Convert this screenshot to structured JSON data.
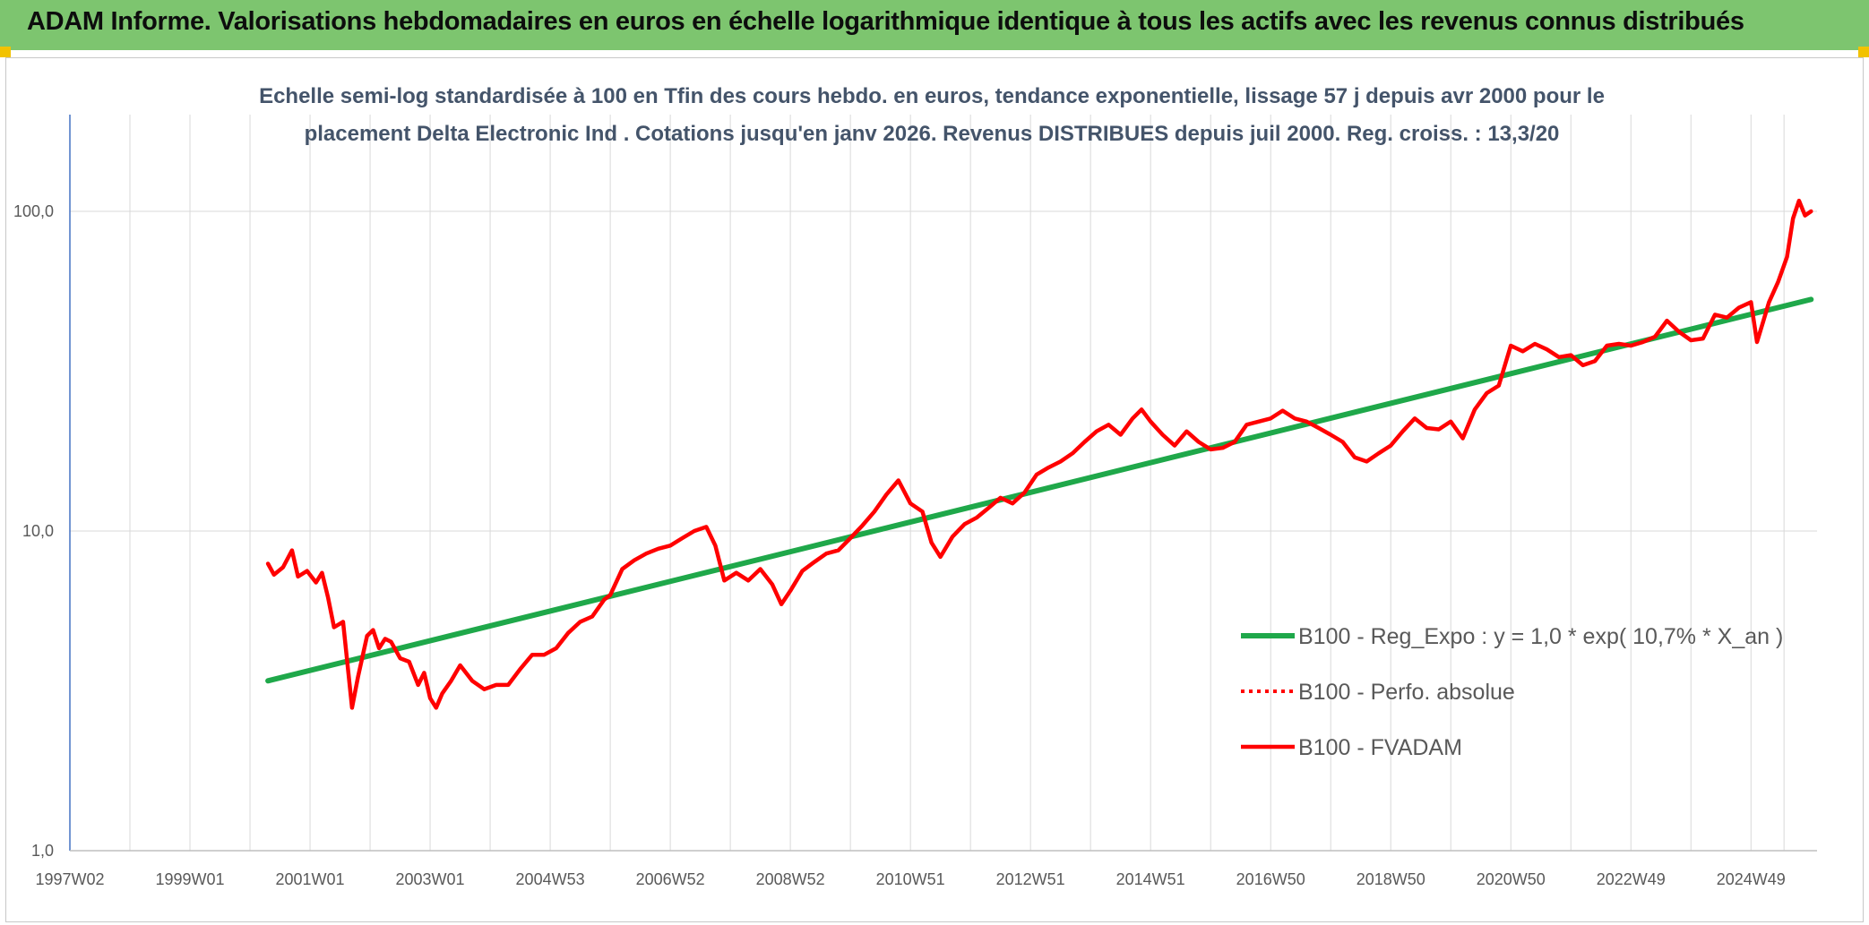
{
  "header": {
    "title": "ADAM Informe. Valorisations hebdomadaires en euros en échelle logarithmique identique à tous les actifs avec les revenus connus distribués"
  },
  "colors": {
    "header_bg": "#7dc56f",
    "corner": "#f2c200",
    "trend": "#1fa84a",
    "fvadam": "#ff0000",
    "title_text": "#44546a",
    "axis": "#4472c4",
    "grid": "#d9d9d9"
  },
  "chart_data": {
    "type": "line",
    "yscale": "log",
    "title_lines": [
      "Echelle semi-log standardisée à 100 en Tfin des cours hebdo. en euros, tendance exponentielle, lissage 57 j depuis avr 2000 pour le",
      "placement Delta Electronic Ind . Cotations jusqu'en janv 2026. Revenus DISTRIBUES depuis juil 2000. Reg. croiss. : 13,3/20"
    ],
    "xlim": [
      1997.0,
      2026.1
    ],
    "ylim": [
      1,
      200
    ],
    "x_ticks": [
      {
        "x": 1997.0,
        "label": "1997W02"
      },
      {
        "x": 1999.0,
        "label": "1999W01"
      },
      {
        "x": 2001.0,
        "label": "2001W01"
      },
      {
        "x": 2003.0,
        "label": "2003W01"
      },
      {
        "x": 2005.0,
        "label": "2004W53"
      },
      {
        "x": 2007.0,
        "label": "2006W52"
      },
      {
        "x": 2009.0,
        "label": "2008W52"
      },
      {
        "x": 2011.0,
        "label": "2010W51"
      },
      {
        "x": 2013.0,
        "label": "2012W51"
      },
      {
        "x": 2015.0,
        "label": "2014W51"
      },
      {
        "x": 2017.0,
        "label": "2016W50"
      },
      {
        "x": 2019.0,
        "label": "2018W50"
      },
      {
        "x": 2021.0,
        "label": "2020W50"
      },
      {
        "x": 2023.0,
        "label": "2022W49"
      },
      {
        "x": 2025.0,
        "label": "2024W49"
      }
    ],
    "y_ticks": [
      {
        "y": 1,
        "label": "1,0"
      },
      {
        "y": 10,
        "label": "10,0"
      },
      {
        "y": 100,
        "label": "100,0"
      }
    ],
    "legend": [
      {
        "key": "trend",
        "label": "B100 - Reg_Expo : y = 1,0 * exp( 10,7% *  X_an )",
        "style": "solid"
      },
      {
        "key": "perfo",
        "label": "B100 - Perfo. absolue",
        "style": "dotted"
      },
      {
        "key": "fvadam",
        "label": "B100 - FVADAM",
        "style": "solid"
      }
    ],
    "series": [
      {
        "name": "B100 - Reg_Expo",
        "key": "trend",
        "x": [
          2000.3,
          2026.0
        ],
        "y": [
          3.4,
          53
        ]
      },
      {
        "name": "B100 - Perfo. absolue",
        "key": "perfo",
        "x": [],
        "y": []
      },
      {
        "name": "B100 - FVADAM",
        "key": "fvadam",
        "x": [
          2000.3,
          2000.4,
          2000.55,
          2000.7,
          2000.8,
          2000.95,
          2001.1,
          2001.2,
          2001.3,
          2001.4,
          2001.55,
          2001.7,
          2001.8,
          2001.95,
          2002.05,
          2002.15,
          2002.25,
          2002.35,
          2002.5,
          2002.65,
          2002.8,
          2002.9,
          2003.0,
          2003.1,
          2003.2,
          2003.35,
          2003.5,
          2003.7,
          2003.9,
          2004.1,
          2004.3,
          2004.5,
          2004.7,
          2004.9,
          2005.1,
          2005.3,
          2005.5,
          2005.7,
          2005.9,
          2006.0,
          2006.2,
          2006.4,
          2006.6,
          2006.8,
          2007.0,
          2007.2,
          2007.4,
          2007.6,
          2007.75,
          2007.9,
          2008.1,
          2008.3,
          2008.5,
          2008.7,
          2008.85,
          2009.0,
          2009.2,
          2009.4,
          2009.6,
          2009.8,
          2010.0,
          2010.2,
          2010.4,
          2010.6,
          2010.8,
          2011.0,
          2011.2,
          2011.35,
          2011.5,
          2011.7,
          2011.9,
          2012.1,
          2012.3,
          2012.5,
          2012.7,
          2012.9,
          2013.1,
          2013.3,
          2013.5,
          2013.7,
          2013.9,
          2014.1,
          2014.3,
          2014.5,
          2014.7,
          2014.85,
          2015.0,
          2015.2,
          2015.4,
          2015.6,
          2015.8,
          2016.0,
          2016.2,
          2016.4,
          2016.6,
          2016.8,
          2017.0,
          2017.2,
          2017.4,
          2017.6,
          2017.8,
          2018.0,
          2018.2,
          2018.4,
          2018.6,
          2018.8,
          2019.0,
          2019.2,
          2019.4,
          2019.6,
          2019.8,
          2020.0,
          2020.2,
          2020.4,
          2020.6,
          2020.8,
          2021.0,
          2021.2,
          2021.4,
          2021.6,
          2021.8,
          2022.0,
          2022.2,
          2022.4,
          2022.6,
          2022.8,
          2023.0,
          2023.2,
          2023.4,
          2023.6,
          2023.8,
          2024.0,
          2024.2,
          2024.4,
          2024.6,
          2024.8,
          2025.0,
          2025.1,
          2025.2,
          2025.3,
          2025.45,
          2025.6,
          2025.7,
          2025.8,
          2025.9,
          2026.0
        ],
        "y": [
          7.9,
          7.3,
          7.7,
          8.7,
          7.2,
          7.5,
          6.9,
          7.4,
          6.2,
          5.0,
          5.2,
          2.8,
          3.5,
          4.7,
          4.9,
          4.3,
          4.6,
          4.5,
          4.0,
          3.9,
          3.3,
          3.6,
          3.0,
          2.8,
          3.1,
          3.4,
          3.8,
          3.4,
          3.2,
          3.3,
          3.3,
          3.7,
          4.1,
          4.1,
          4.3,
          4.8,
          5.2,
          5.4,
          6.1,
          6.3,
          7.6,
          8.1,
          8.5,
          8.8,
          9.0,
          9.5,
          10.0,
          10.3,
          9.0,
          7.0,
          7.4,
          7.0,
          7.6,
          6.8,
          5.9,
          6.5,
          7.5,
          8.0,
          8.5,
          8.7,
          9.5,
          10.4,
          11.5,
          13.0,
          14.4,
          12.2,
          11.5,
          9.2,
          8.3,
          9.6,
          10.5,
          11.0,
          11.8,
          12.7,
          12.2,
          13.2,
          15.0,
          15.8,
          16.5,
          17.5,
          19.0,
          20.5,
          21.5,
          20.0,
          22.5,
          24.0,
          22.0,
          20.0,
          18.5,
          20.5,
          19.0,
          18.0,
          18.2,
          19.0,
          21.5,
          22.0,
          22.5,
          23.8,
          22.5,
          22.0,
          21.0,
          20.0,
          19.0,
          17.0,
          16.5,
          17.5,
          18.5,
          20.5,
          22.5,
          21.0,
          20.8,
          22.0,
          19.5,
          24.0,
          27.0,
          28.5,
          38.0,
          36.5,
          38.5,
          37.0,
          35.0,
          35.5,
          33.0,
          34.0,
          38.0,
          38.5,
          38.0,
          39.0,
          40.5,
          45.5,
          42.0,
          39.5,
          40.0,
          47.5,
          46.5,
          50.0,
          52.0,
          39.0,
          45.0,
          52.0,
          60.0,
          72.0,
          95.0,
          108.0,
          97.0,
          100.0
        ]
      }
    ]
  }
}
